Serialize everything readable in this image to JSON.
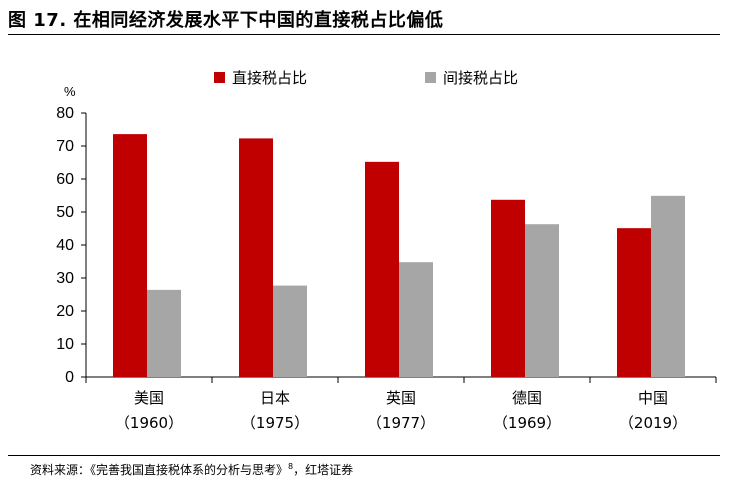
{
  "figure": {
    "title": "图 17. 在相同经济发展水平下中国的直接税占比偏低",
    "source_prefix": "资料来源：《完善我国直接税体系的分析与思考》",
    "source_sup": "8",
    "source_suffix": "，红塔证券"
  },
  "chart_data": {
    "type": "bar",
    "categories": [
      {
        "name": "美国",
        "year": "（1960）"
      },
      {
        "name": "日本",
        "year": "（1975）"
      },
      {
        "name": "英国",
        "year": "（1977）"
      },
      {
        "name": "德国",
        "year": "（1969）"
      },
      {
        "name": "中国",
        "year": "（2019）"
      }
    ],
    "series": [
      {
        "name": "直接税占比",
        "color": "#c00000",
        "values": [
          73.6,
          72.3,
          65.2,
          53.7,
          45.1
        ]
      },
      {
        "name": "间接税占比",
        "color": "#a6a6a6",
        "values": [
          26.4,
          27.7,
          34.8,
          46.3,
          54.9
        ]
      }
    ],
    "ylabel": "%",
    "ylim": [
      0,
      80
    ],
    "yticks": [
      0,
      10,
      20,
      30,
      40,
      50,
      60,
      70,
      80
    ],
    "grid": false,
    "legend_position": "top-center"
  }
}
